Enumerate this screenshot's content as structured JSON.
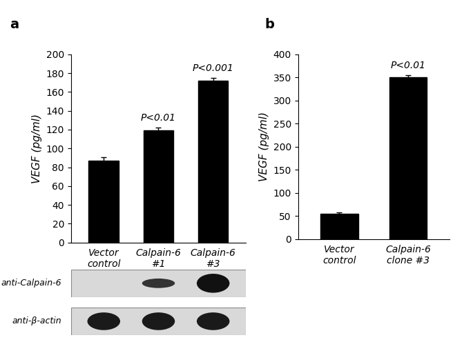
{
  "chart_data": [
    {
      "type": "bar",
      "panel": "a",
      "categories": [
        "Vector\ncontrol",
        "Calpain-6\n#1",
        "Calpain-6\n#3"
      ],
      "values": [
        87,
        119,
        172
      ],
      "errors": [
        4,
        3,
        3
      ],
      "color": "#000000",
      "y_label": "VEGF (pg/ml)",
      "ylim": [
        0,
        200
      ],
      "yticks": [
        0,
        20,
        40,
        60,
        80,
        100,
        120,
        140,
        160,
        180,
        200
      ],
      "annotations": [
        null,
        "P<0.01",
        "P<0.001"
      ],
      "blot_labels": [
        "anti-Calpain-6",
        "anti-β-actin"
      ],
      "grid": false
    },
    {
      "type": "bar",
      "panel": "b",
      "categories": [
        "Vector\ncontrol",
        "Calpain-6\nclone #3"
      ],
      "values": [
        54,
        350
      ],
      "errors": [
        4,
        5
      ],
      "color": "#000000",
      "y_label": "VEGF (pg/ml)",
      "ylim": [
        0,
        400
      ],
      "yticks": [
        0,
        50,
        100,
        150,
        200,
        250,
        300,
        350,
        400
      ],
      "annotations": [
        null,
        "P<0.01"
      ],
      "grid": false
    }
  ]
}
